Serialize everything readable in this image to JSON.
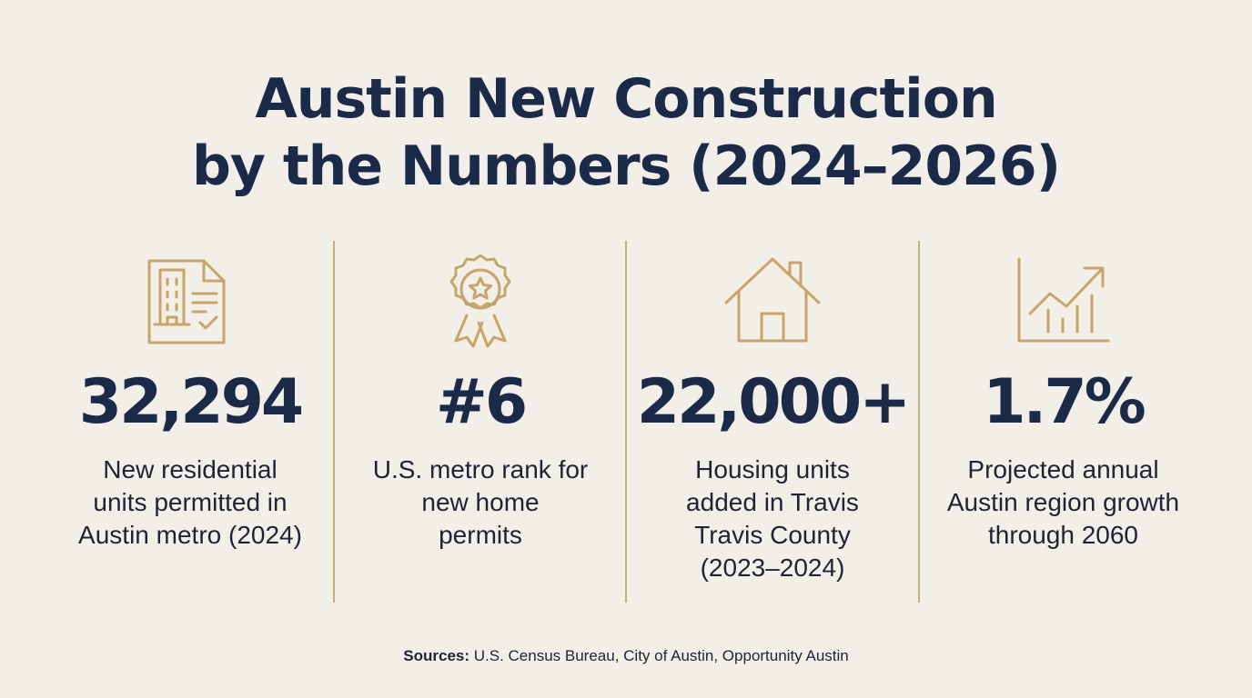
{
  "title": {
    "line1": "Austin New Construction",
    "line2": "by the Numbers (2024–2026)"
  },
  "icon_color": "#c8a468",
  "stats": [
    {
      "icon": "building-document-icon",
      "value": "32,294",
      "desc": [
        "New residential",
        "units permitted in",
        "Austin metro (2024)"
      ]
    },
    {
      "icon": "award-ribbon-icon",
      "value": "#6",
      "desc": [
        "U.S. metro rank for",
        "new home",
        "permits"
      ]
    },
    {
      "icon": "house-icon",
      "value": "22,000+",
      "desc": [
        "Housing units",
        "added in Travis",
        "Travis County",
        "(2023–2024)"
      ]
    },
    {
      "icon": "growth-chart-icon",
      "value": "1.7%",
      "desc": [
        "Projected annual",
        "Austin region growth",
        "through 2060"
      ]
    }
  ],
  "sources": {
    "label": "Sources:",
    "text": " U.S. Census Bureau, City of Austin, Opportunity Austin"
  }
}
